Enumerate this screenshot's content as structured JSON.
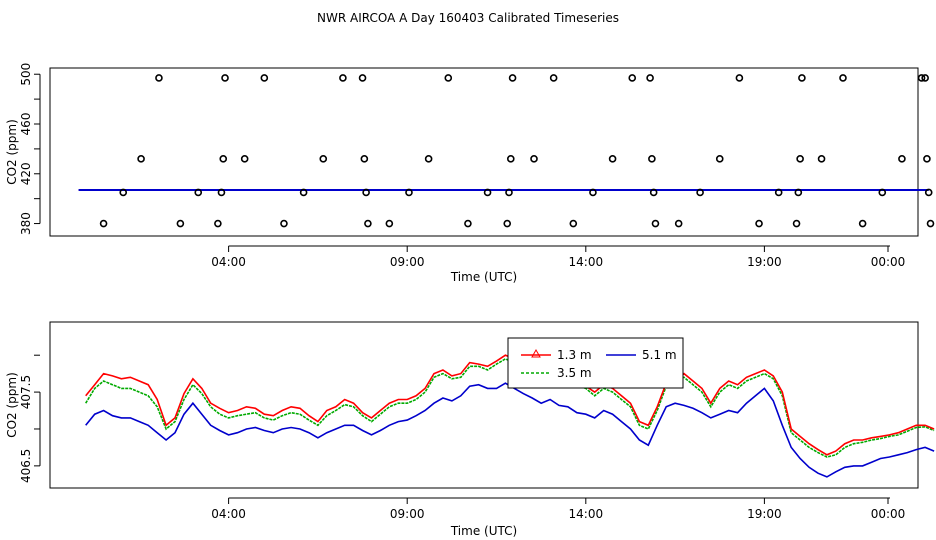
{
  "figure": {
    "title": "NWR AIRCOA A  Day 160403  Calibrated Timeseries"
  },
  "chart_data": [
    {
      "type": "scatter",
      "ylabel": "CO2 (ppm)",
      "xlabel": "Time (UTC)",
      "ylim": [
        370,
        505
      ],
      "xlim": [
        -1.0,
        23.3
      ],
      "yticks": [
        {
          "v": 380,
          "label": "380"
        },
        {
          "v": 420,
          "label": "420"
        },
        {
          "v": 460,
          "label": "460"
        },
        {
          "v": 500,
          "label": "500"
        }
      ],
      "xticks": [
        {
          "v": 4,
          "label": "04:00"
        },
        {
          "v": 9,
          "label": "09:00"
        },
        {
          "v": 14,
          "label": "14:00"
        },
        {
          "v": 19,
          "label": "19:00"
        },
        {
          "v": 24,
          "label": "00:00"
        }
      ],
      "line_value": 407,
      "line_color": "#0000cc",
      "points": [
        [
          0.5,
          380
        ],
        [
          1.05,
          405
        ],
        [
          1.55,
          432
        ],
        [
          2.05,
          497
        ],
        [
          2.65,
          380
        ],
        [
          3.15,
          405
        ],
        [
          3.7,
          380
        ],
        [
          3.8,
          405
        ],
        [
          3.85,
          432
        ],
        [
          3.9,
          497
        ],
        [
          4.45,
          432
        ],
        [
          5.0,
          497
        ],
        [
          5.55,
          380
        ],
        [
          6.1,
          405
        ],
        [
          6.65,
          432
        ],
        [
          7.2,
          497
        ],
        [
          7.75,
          497
        ],
        [
          7.8,
          432
        ],
        [
          7.85,
          405
        ],
        [
          7.9,
          380
        ],
        [
          8.5,
          380
        ],
        [
          9.05,
          405
        ],
        [
          9.6,
          432
        ],
        [
          10.15,
          497
        ],
        [
          10.7,
          380
        ],
        [
          11.25,
          405
        ],
        [
          11.8,
          380
        ],
        [
          11.85,
          405
        ],
        [
          11.9,
          432
        ],
        [
          11.95,
          497
        ],
        [
          12.55,
          432
        ],
        [
          13.1,
          497
        ],
        [
          13.65,
          380
        ],
        [
          14.2,
          405
        ],
        [
          14.75,
          432
        ],
        [
          15.3,
          497
        ],
        [
          15.8,
          497
        ],
        [
          15.85,
          432
        ],
        [
          15.9,
          405
        ],
        [
          15.95,
          380
        ],
        [
          16.6,
          380
        ],
        [
          17.2,
          405
        ],
        [
          17.75,
          432
        ],
        [
          18.3,
          497
        ],
        [
          18.85,
          380
        ],
        [
          19.4,
          405
        ],
        [
          19.9,
          380
        ],
        [
          19.95,
          405
        ],
        [
          20.0,
          432
        ],
        [
          20.05,
          497
        ],
        [
          20.6,
          432
        ],
        [
          21.2,
          497
        ],
        [
          21.75,
          380
        ],
        [
          22.3,
          405
        ],
        [
          22.85,
          432
        ],
        [
          23.4,
          497
        ],
        [
          23.5,
          497
        ],
        [
          23.55,
          432
        ],
        [
          23.6,
          405
        ],
        [
          23.65,
          380
        ]
      ]
    },
    {
      "type": "line",
      "ylabel": "CO2 (ppm)",
      "xlabel": "Time (UTC)",
      "ylim": [
        406.2,
        408.45
      ],
      "xlim": [
        -1.0,
        23.3
      ],
      "yticks": [
        {
          "v": 406.5,
          "label": "406.5"
        },
        {
          "v": 407.5,
          "label": "407.5"
        }
      ],
      "xticks": [
        {
          "v": 4,
          "label": "04:00"
        },
        {
          "v": 9,
          "label": "09:00"
        },
        {
          "v": 14,
          "label": "14:00"
        },
        {
          "v": 19,
          "label": "19:00"
        },
        {
          "v": 24,
          "label": "00:00"
        }
      ],
      "x": [
        0.0,
        0.25,
        0.5,
        0.75,
        1.0,
        1.25,
        1.5,
        1.75,
        2.0,
        2.25,
        2.5,
        2.75,
        3.0,
        3.25,
        3.5,
        3.75,
        4.0,
        4.25,
        4.5,
        4.75,
        5.0,
        5.25,
        5.5,
        5.75,
        6.0,
        6.25,
        6.5,
        6.75,
        7.0,
        7.25,
        7.5,
        7.75,
        8.0,
        8.25,
        8.5,
        8.75,
        9.0,
        9.25,
        9.5,
        9.75,
        10.0,
        10.25,
        10.5,
        10.75,
        11.0,
        11.25,
        11.5,
        11.75,
        12.0,
        12.25,
        12.5,
        12.75,
        13.0,
        13.25,
        13.5,
        13.75,
        14.0,
        14.25,
        14.5,
        14.75,
        15.0,
        15.25,
        15.5,
        15.75,
        16.0,
        16.25,
        16.5,
        16.75,
        17.0,
        17.25,
        17.5,
        17.75,
        18.0,
        18.25,
        18.5,
        18.75,
        19.0,
        19.25,
        19.5,
        19.75,
        20.0,
        20.25,
        20.5,
        20.75,
        21.0,
        21.25,
        21.5,
        21.75,
        22.0,
        22.25,
        22.5,
        22.75,
        23.0,
        23.25,
        23.5,
        23.75
      ],
      "series": [
        {
          "name": "1.3 m",
          "color": "#ff0000",
          "values": [
            407.45,
            407.6,
            407.75,
            407.72,
            407.68,
            407.7,
            407.65,
            407.6,
            407.4,
            407.05,
            407.15,
            407.48,
            407.68,
            407.55,
            407.35,
            407.28,
            407.22,
            407.25,
            407.3,
            407.28,
            407.2,
            407.18,
            407.25,
            407.3,
            407.28,
            407.18,
            407.1,
            407.25,
            407.3,
            407.4,
            407.35,
            407.22,
            407.15,
            407.25,
            407.35,
            407.4,
            407.4,
            407.45,
            407.55,
            407.75,
            407.8,
            407.72,
            407.75,
            407.9,
            407.88,
            407.85,
            407.92,
            408.0,
            407.95,
            407.98,
            407.9,
            407.85,
            407.75,
            407.65,
            407.7,
            407.62,
            407.58,
            407.5,
            407.6,
            407.55,
            407.45,
            407.35,
            407.1,
            407.05,
            407.3,
            407.62,
            407.7,
            407.75,
            407.65,
            407.55,
            407.35,
            407.55,
            407.65,
            407.6,
            407.7,
            407.75,
            407.8,
            407.72,
            407.5,
            407.0,
            406.9,
            406.8,
            406.72,
            406.65,
            406.7,
            406.8,
            406.85,
            406.85,
            406.88,
            406.9,
            406.92,
            406.95,
            407.0,
            407.05,
            407.05,
            407.0
          ]
        },
        {
          "name": "3.5 m",
          "color": "#00aa00",
          "values": [
            407.35,
            407.55,
            407.65,
            407.6,
            407.55,
            407.55,
            407.5,
            407.45,
            407.3,
            407.0,
            407.1,
            407.4,
            407.6,
            407.48,
            407.3,
            407.2,
            407.15,
            407.18,
            407.2,
            407.22,
            407.15,
            407.12,
            407.18,
            407.22,
            407.2,
            407.12,
            407.05,
            407.18,
            407.25,
            407.33,
            407.3,
            407.18,
            407.1,
            407.2,
            407.3,
            407.35,
            407.35,
            407.4,
            407.5,
            407.7,
            407.75,
            407.68,
            407.7,
            407.85,
            407.85,
            407.8,
            407.88,
            407.95,
            407.9,
            407.93,
            407.85,
            407.8,
            407.7,
            407.62,
            407.65,
            407.58,
            407.55,
            407.45,
            407.55,
            407.5,
            407.4,
            407.3,
            407.05,
            407.0,
            407.25,
            407.58,
            407.65,
            407.7,
            407.6,
            407.5,
            407.3,
            407.5,
            407.6,
            407.55,
            407.65,
            407.7,
            407.75,
            407.68,
            407.45,
            406.95,
            406.85,
            406.75,
            406.68,
            406.62,
            406.65,
            406.75,
            406.8,
            406.82,
            406.85,
            406.87,
            406.9,
            406.92,
            406.97,
            407.02,
            407.03,
            406.98
          ]
        },
        {
          "name": "5.1 m",
          "color": "#0000cc",
          "values": [
            407.05,
            407.2,
            407.25,
            407.18,
            407.15,
            407.15,
            407.1,
            407.05,
            406.95,
            406.85,
            406.95,
            407.2,
            407.35,
            407.2,
            407.05,
            406.98,
            406.92,
            406.95,
            407.0,
            407.02,
            406.98,
            406.95,
            407.0,
            407.02,
            407.0,
            406.95,
            406.88,
            406.95,
            407.0,
            407.05,
            407.05,
            406.98,
            406.92,
            406.98,
            407.05,
            407.1,
            407.12,
            407.18,
            407.25,
            407.35,
            407.42,
            407.38,
            407.45,
            407.58,
            407.6,
            407.55,
            407.55,
            407.62,
            407.55,
            407.48,
            407.42,
            407.35,
            407.4,
            407.32,
            407.3,
            407.22,
            407.2,
            407.15,
            407.25,
            407.2,
            407.1,
            407.0,
            406.85,
            406.78,
            407.05,
            407.3,
            407.35,
            407.32,
            407.28,
            407.22,
            407.15,
            407.2,
            407.25,
            407.22,
            407.35,
            407.45,
            407.55,
            407.38,
            407.05,
            406.75,
            406.6,
            406.48,
            406.4,
            406.35,
            406.42,
            406.48,
            406.5,
            406.5,
            406.55,
            406.6,
            406.62,
            406.65,
            406.68,
            406.72,
            406.75,
            406.7
          ]
        }
      ],
      "legend": {
        "position": "upper-middle-right",
        "entries": [
          "1.3 m",
          "5.1 m",
          "3.5 m"
        ]
      }
    }
  ]
}
